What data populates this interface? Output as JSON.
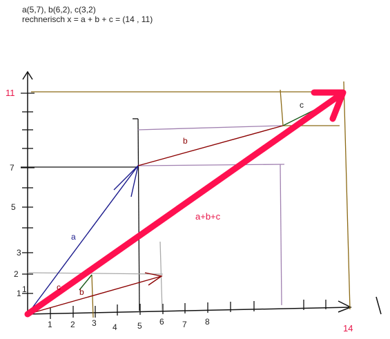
{
  "header": {
    "line1": "a(5,7), b(6,2), c(3,2)",
    "line2": "rechnerisch x = a + b + c  = (14 , 11)"
  },
  "y_labels": [
    "11",
    "7",
    "5",
    "3",
    "2",
    "1",
    "1'"
  ],
  "x_labels": [
    "1",
    "2",
    "3",
    "4",
    "5",
    "6",
    "7",
    "8",
    "14"
  ],
  "vector_labels": {
    "a": "a",
    "b_small": "b",
    "c_small": "c",
    "b": "b",
    "c": "c",
    "sum": "a+b+c"
  }
}
